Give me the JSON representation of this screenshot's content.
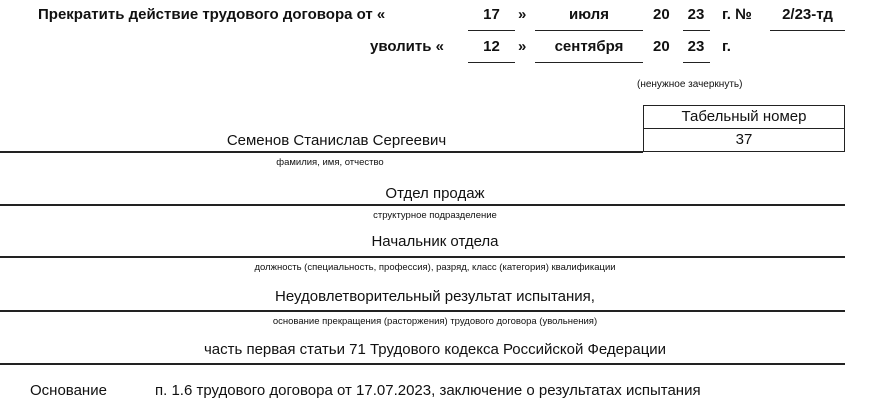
{
  "header": {
    "terminate_label": "Прекратить действие трудового договора от «",
    "contract_day": "17",
    "close_quote": "»",
    "contract_month": "июля",
    "year_prefix": "20",
    "contract_year": "23",
    "number_label": "г. №",
    "contract_number": "2/23-тд",
    "dismiss_label": "уволить «",
    "dismiss_day": "12",
    "dismiss_month": "сентября",
    "dismiss_year": "23",
    "year_suffix": "г.",
    "strike_note": "(ненужное зачеркнуть)"
  },
  "personnel": {
    "label": "Табельный номер",
    "value": "37"
  },
  "fields": [
    {
      "value": "Семенов Станислав Сергеевич",
      "caption": "фамилия, имя, отчество"
    },
    {
      "value": "Отдел продаж",
      "caption": "структурное подразделение"
    },
    {
      "value": "Начальник отдела",
      "caption": "должность (специальность, профессия), разряд, класс (категория) квалификации"
    },
    {
      "value": "Неудовлетворительный результат испытания,",
      "caption": "основание прекращения (расторжения) трудового договора (увольнения)"
    },
    {
      "value": "часть первая статьи 71 Трудового кодекса Российской Федерации"
    }
  ],
  "basis": {
    "label": "Основание",
    "value": "п. 1.6 трудового договора от 17.07.2023, заключение о результатах испытания"
  }
}
